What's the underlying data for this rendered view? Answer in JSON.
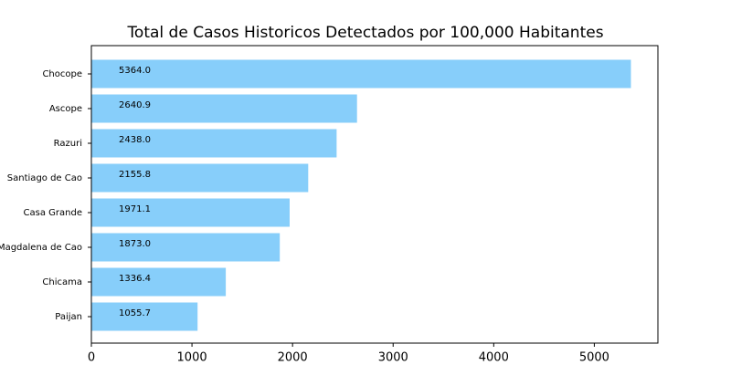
{
  "chart_data": {
    "type": "barh",
    "title": "Total de Casos Historicos Detectados por 100,000 Habitantes",
    "categories": [
      "Chocope",
      "Ascope",
      "Razuri",
      "Santiago de Cao",
      "Casa Grande",
      "Magdalena de Cao",
      "Chicama",
      "Paijan"
    ],
    "values": [
      5364.0,
      2640.9,
      2438.0,
      2155.8,
      1971.1,
      1873.0,
      1336.4,
      1055.7
    ],
    "value_labels": [
      "5364.0",
      "2640.9",
      "2438.0",
      "2155.8",
      "1971.1",
      "1873.0",
      "1336.4",
      "1055.7"
    ],
    "color": "#87cefa",
    "xlim": [
      0,
      5632.2
    ],
    "xticks": [
      0,
      1000,
      2000,
      3000,
      4000,
      5000
    ],
    "grid": false
  }
}
